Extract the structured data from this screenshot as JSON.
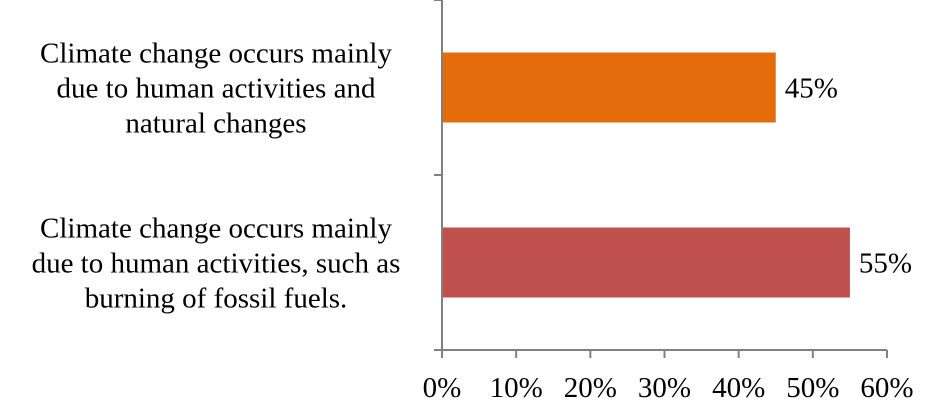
{
  "chart_data": {
    "type": "bar",
    "orientation": "horizontal",
    "categories": [
      [
        "Climate change occurs mainly",
        "due to human activities and",
        "natural changes"
      ],
      [
        "Climate change occurs mainly",
        "due to human activities, such as",
        "burning of fossil fuels."
      ]
    ],
    "values": [
      45,
      55
    ],
    "value_labels": [
      "45%",
      "55%"
    ],
    "colors": [
      "#E46C0A",
      "#C0504D"
    ],
    "xlim": [
      0,
      60
    ],
    "x_ticks": [
      0,
      10,
      20,
      30,
      40,
      50,
      60
    ],
    "x_tick_labels": [
      "0%",
      "10%",
      "20%",
      "30%",
      "40%",
      "50%",
      "60%"
    ],
    "grid": false,
    "legend": "none"
  }
}
